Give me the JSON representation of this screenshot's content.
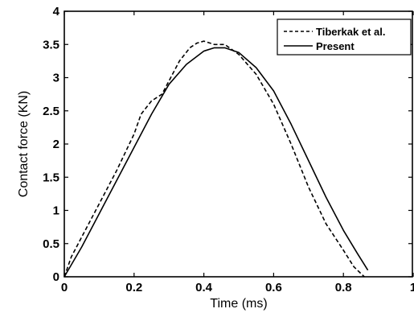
{
  "chart_data": {
    "type": "line",
    "title": "",
    "xlabel": "Time (ms)",
    "ylabel": "Contact force (KN)",
    "xlim": [
      0,
      1
    ],
    "ylim": [
      0,
      4
    ],
    "xticks": [
      0,
      0.2,
      0.4,
      0.6,
      0.8,
      1
    ],
    "yticks": [
      0,
      0.5,
      1,
      1.5,
      2,
      2.5,
      3,
      3.5,
      4
    ],
    "xtick_labels": [
      "0",
      "0.2",
      "0.4",
      "0.6",
      "0.8",
      "1"
    ],
    "ytick_labels": [
      "0",
      "0.5",
      "1",
      "1.5",
      "2",
      "2.5",
      "3",
      "3.5",
      "4"
    ],
    "grid": false,
    "legend_position": "top-right",
    "series": [
      {
        "name": "Tiberkak et al.",
        "style": "dashed",
        "color": "#000000",
        "x": [
          0,
          0.02,
          0.05,
          0.1,
          0.15,
          0.2,
          0.22,
          0.25,
          0.28,
          0.3,
          0.33,
          0.36,
          0.38,
          0.4,
          0.43,
          0.46,
          0.5,
          0.55,
          0.6,
          0.65,
          0.7,
          0.75,
          0.8,
          0.83,
          0.86
        ],
        "y": [
          0,
          0.3,
          0.6,
          1.1,
          1.6,
          2.15,
          2.45,
          2.65,
          2.75,
          2.95,
          3.25,
          3.45,
          3.52,
          3.55,
          3.5,
          3.5,
          3.35,
          3.05,
          2.6,
          2.0,
          1.35,
          0.8,
          0.4,
          0.15,
          0
        ]
      },
      {
        "name": "Present",
        "style": "solid",
        "color": "#000000",
        "x": [
          0,
          0.02,
          0.05,
          0.1,
          0.15,
          0.2,
          0.25,
          0.3,
          0.35,
          0.4,
          0.43,
          0.46,
          0.5,
          0.55,
          0.6,
          0.65,
          0.7,
          0.75,
          0.8,
          0.84,
          0.87
        ],
        "y": [
          0,
          0.18,
          0.45,
          0.95,
          1.45,
          1.95,
          2.45,
          2.9,
          3.2,
          3.4,
          3.45,
          3.45,
          3.38,
          3.15,
          2.8,
          2.3,
          1.75,
          1.2,
          0.7,
          0.35,
          0.1
        ]
      }
    ]
  }
}
